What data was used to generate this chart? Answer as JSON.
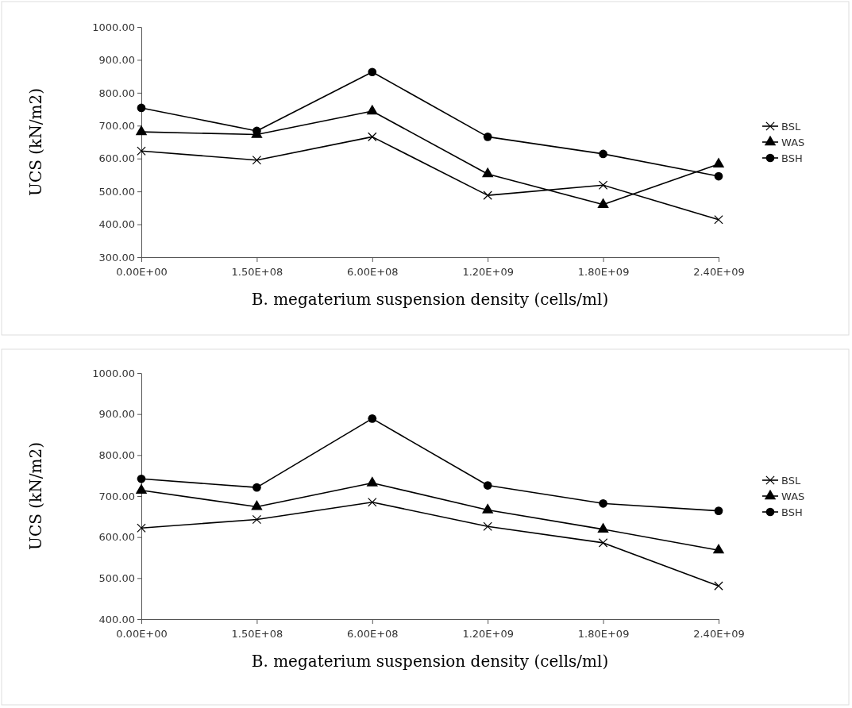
{
  "chart_data": [
    {
      "type": "line",
      "xlabel": "B. megaterium suspension density (cells/ml)",
      "ylabel": "UCS (kN/m2)",
      "categories": [
        "0.00E+00",
        "1.50E+08",
        "6.00E+08",
        "1.20E+09",
        "1.80E+09",
        "2.40E+09"
      ],
      "ylim": [
        300,
        1000
      ],
      "yticks": [
        {
          "value": 300,
          "label": "300.00"
        },
        {
          "value": 400,
          "label": "400.00"
        },
        {
          "value": 500,
          "label": "500.00"
        },
        {
          "value": 600,
          "label": "600.00"
        },
        {
          "value": 700,
          "label": "700.00"
        },
        {
          "value": 800,
          "label": "800.00"
        },
        {
          "value": 900,
          "label": "900.00"
        },
        {
          "value": 1000,
          "label": "1000.00"
        }
      ],
      "grid": false,
      "legend": "right",
      "line_style": "solid",
      "series": [
        {
          "name": "BSL",
          "color": "#000000",
          "marker": "cross",
          "values": [
            623,
            595,
            666,
            488,
            519,
            414
          ]
        },
        {
          "name": "WAS",
          "color": "#000000",
          "marker": "triangle",
          "values": [
            681,
            673,
            744,
            553,
            460,
            583
          ]
        },
        {
          "name": "BSH",
          "color": "#000000",
          "marker": "circle",
          "values": [
            754,
            684,
            863,
            666,
            614,
            546
          ]
        }
      ]
    },
    {
      "type": "line",
      "xlabel": "B. megaterium suspension density (cells/ml)",
      "ylabel": "UCS (kN/m2)",
      "categories": [
        "0.00E+00",
        "1.50E+08",
        "6.00E+08",
        "1.20E+09",
        "1.80E+09",
        "2.40E+09"
      ],
      "ylim": [
        400,
        1000
      ],
      "yticks": [
        {
          "value": 400,
          "label": "400.00"
        },
        {
          "value": 500,
          "label": "500.00"
        },
        {
          "value": 600,
          "label": "600.00"
        },
        {
          "value": 700,
          "label": "700.00"
        },
        {
          "value": 800,
          "label": "800.00"
        },
        {
          "value": 900,
          "label": "900.00"
        },
        {
          "value": 1000,
          "label": "1000.00"
        }
      ],
      "grid": false,
      "legend": "right",
      "line_style": "solid",
      "series": [
        {
          "name": "BSL",
          "color": "#000000",
          "marker": "cross",
          "values": [
            622,
            643,
            685,
            626,
            586,
            481
          ]
        },
        {
          "name": "WAS",
          "color": "#000000",
          "marker": "triangle",
          "values": [
            714,
            674,
            732,
            666,
            619,
            568
          ]
        },
        {
          "name": "BSH",
          "color": "#000000",
          "marker": "circle",
          "values": [
            742,
            721,
            889,
            726,
            682,
            664
          ]
        }
      ]
    }
  ]
}
